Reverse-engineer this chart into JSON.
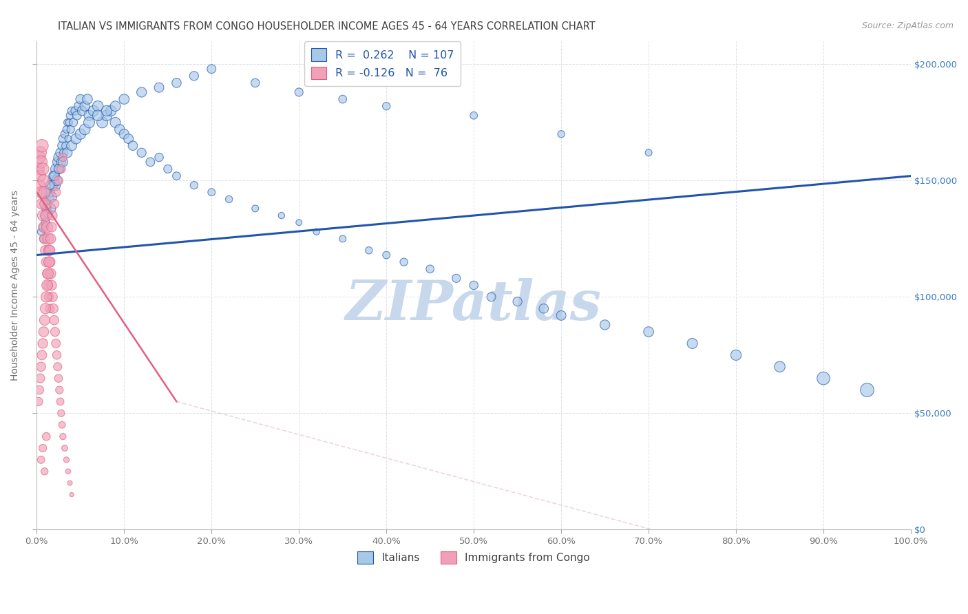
{
  "title": "ITALIAN VS IMMIGRANTS FROM CONGO HOUSEHOLDER INCOME AGES 45 - 64 YEARS CORRELATION CHART",
  "source": "Source: ZipAtlas.com",
  "ylabel": "Householder Income Ages 45 - 64 years",
  "xlim": [
    0,
    1.0
  ],
  "ylim": [
    0,
    210000
  ],
  "xticks": [
    0.0,
    0.1,
    0.2,
    0.3,
    0.4,
    0.5,
    0.6,
    0.7,
    0.8,
    0.9,
    1.0
  ],
  "xticklabels": [
    "0.0%",
    "10.0%",
    "20.0%",
    "30.0%",
    "40.0%",
    "50.0%",
    "60.0%",
    "70.0%",
    "80.0%",
    "90.0%",
    "100.0%"
  ],
  "ytick_values": [
    0,
    50000,
    100000,
    150000,
    200000
  ],
  "ytick_labels": [
    "$0",
    "$50,000",
    "$100,000",
    "$150,000",
    "$200,000"
  ],
  "blue_color": "#a8c8e8",
  "blue_line_color": "#2255aa",
  "pink_color": "#f0a0b8",
  "pink_line_color": "#e06080",
  "pink_dashed_color": "#d8b0c0",
  "title_color": "#404040",
  "axis_label_color": "#707070",
  "watermark_color": "#c8d8ec",
  "background_color": "#ffffff",
  "grid_color": "#d8dfe8",
  "italians_x": [
    0.005,
    0.007,
    0.008,
    0.009,
    0.01,
    0.011,
    0.012,
    0.013,
    0.014,
    0.015,
    0.016,
    0.017,
    0.018,
    0.019,
    0.02,
    0.021,
    0.022,
    0.023,
    0.024,
    0.025,
    0.026,
    0.027,
    0.028,
    0.029,
    0.03,
    0.031,
    0.032,
    0.033,
    0.034,
    0.035,
    0.036,
    0.037,
    0.038,
    0.039,
    0.04,
    0.042,
    0.044,
    0.046,
    0.048,
    0.05,
    0.052,
    0.055,
    0.058,
    0.06,
    0.065,
    0.07,
    0.075,
    0.08,
    0.085,
    0.09,
    0.095,
    0.1,
    0.105,
    0.11,
    0.12,
    0.13,
    0.14,
    0.15,
    0.16,
    0.18,
    0.2,
    0.22,
    0.25,
    0.28,
    0.3,
    0.32,
    0.35,
    0.38,
    0.4,
    0.42,
    0.45,
    0.48,
    0.5,
    0.52,
    0.55,
    0.58,
    0.6,
    0.65,
    0.7,
    0.75,
    0.8,
    0.85,
    0.9,
    0.95,
    0.01,
    0.015,
    0.02,
    0.025,
    0.03,
    0.035,
    0.04,
    0.045,
    0.05,
    0.055,
    0.06,
    0.07,
    0.08,
    0.09,
    0.1,
    0.12,
    0.14,
    0.16,
    0.18,
    0.2,
    0.25,
    0.3,
    0.35,
    0.4,
    0.5,
    0.6,
    0.7
  ],
  "italians_y": [
    128000,
    130000,
    125000,
    135000,
    132000,
    138000,
    140000,
    136000,
    142000,
    145000,
    138000,
    143000,
    148000,
    150000,
    152000,
    148000,
    155000,
    150000,
    158000,
    160000,
    155000,
    162000,
    158000,
    165000,
    168000,
    162000,
    170000,
    165000,
    172000,
    175000,
    168000,
    175000,
    178000,
    172000,
    180000,
    175000,
    180000,
    178000,
    182000,
    185000,
    180000,
    182000,
    185000,
    178000,
    180000,
    182000,
    175000,
    178000,
    180000,
    175000,
    172000,
    170000,
    168000,
    165000,
    162000,
    158000,
    160000,
    155000,
    152000,
    148000,
    145000,
    142000,
    138000,
    135000,
    132000,
    128000,
    125000,
    120000,
    118000,
    115000,
    112000,
    108000,
    105000,
    100000,
    98000,
    95000,
    92000,
    88000,
    85000,
    80000,
    75000,
    70000,
    65000,
    60000,
    145000,
    148000,
    152000,
    155000,
    158000,
    162000,
    165000,
    168000,
    170000,
    172000,
    175000,
    178000,
    180000,
    182000,
    185000,
    188000,
    190000,
    192000,
    195000,
    198000,
    192000,
    188000,
    185000,
    182000,
    178000,
    170000,
    162000
  ],
  "italians_size": [
    60,
    65,
    70,
    75,
    80,
    85,
    90,
    95,
    100,
    105,
    110,
    115,
    120,
    125,
    130,
    125,
    120,
    115,
    110,
    105,
    100,
    95,
    90,
    85,
    80,
    75,
    70,
    65,
    60,
    55,
    50,
    55,
    60,
    65,
    70,
    75,
    80,
    85,
    90,
    95,
    100,
    105,
    110,
    115,
    120,
    125,
    130,
    125,
    120,
    115,
    110,
    105,
    100,
    95,
    90,
    85,
    80,
    75,
    70,
    65,
    60,
    55,
    50,
    45,
    40,
    45,
    50,
    55,
    60,
    65,
    70,
    75,
    80,
    85,
    90,
    95,
    100,
    105,
    110,
    115,
    120,
    125,
    180,
    200,
    80,
    85,
    90,
    95,
    100,
    105,
    110,
    115,
    120,
    125,
    130,
    125,
    120,
    115,
    110,
    105,
    100,
    95,
    90,
    85,
    80,
    75,
    70,
    65,
    60,
    55,
    50
  ],
  "congo_x": [
    0.002,
    0.003,
    0.003,
    0.004,
    0.004,
    0.005,
    0.005,
    0.006,
    0.006,
    0.007,
    0.007,
    0.008,
    0.008,
    0.009,
    0.009,
    0.01,
    0.01,
    0.011,
    0.011,
    0.012,
    0.012,
    0.013,
    0.013,
    0.014,
    0.014,
    0.015,
    0.015,
    0.016,
    0.017,
    0.018,
    0.019,
    0.02,
    0.021,
    0.022,
    0.023,
    0.024,
    0.025,
    0.026,
    0.027,
    0.028,
    0.029,
    0.03,
    0.032,
    0.034,
    0.036,
    0.038,
    0.04,
    0.002,
    0.003,
    0.004,
    0.005,
    0.006,
    0.007,
    0.008,
    0.009,
    0.01,
    0.011,
    0.012,
    0.013,
    0.014,
    0.015,
    0.016,
    0.017,
    0.018,
    0.02,
    0.022,
    0.025,
    0.028,
    0.03,
    0.005,
    0.007,
    0.009,
    0.011
  ],
  "congo_y": [
    155000,
    160000,
    148000,
    162000,
    152000,
    158000,
    145000,
    165000,
    140000,
    155000,
    135000,
    150000,
    130000,
    145000,
    125000,
    140000,
    120000,
    135000,
    115000,
    130000,
    110000,
    125000,
    105000,
    120000,
    100000,
    115000,
    95000,
    110000,
    105000,
    100000,
    95000,
    90000,
    85000,
    80000,
    75000,
    70000,
    65000,
    60000,
    55000,
    50000,
    45000,
    40000,
    35000,
    30000,
    25000,
    20000,
    15000,
    55000,
    60000,
    65000,
    70000,
    75000,
    80000,
    85000,
    90000,
    95000,
    100000,
    105000,
    110000,
    115000,
    120000,
    125000,
    130000,
    135000,
    140000,
    145000,
    150000,
    155000,
    160000,
    30000,
    35000,
    25000,
    40000
  ],
  "congo_size": [
    150,
    160,
    140,
    170,
    145,
    165,
    135,
    175,
    130,
    160,
    125,
    155,
    120,
    150,
    115,
    145,
    110,
    140,
    105,
    135,
    100,
    130,
    95,
    125,
    90,
    120,
    85,
    115,
    110,
    105,
    100,
    95,
    90,
    85,
    80,
    75,
    70,
    65,
    60,
    55,
    50,
    45,
    40,
    35,
    30,
    25,
    20,
    80,
    85,
    90,
    95,
    100,
    105,
    110,
    115,
    120,
    125,
    130,
    125,
    120,
    115,
    110,
    105,
    100,
    95,
    90,
    85,
    80,
    75,
    60,
    65,
    55,
    70
  ],
  "blue_trend": [
    0.0,
    1.0,
    118000,
    152000
  ],
  "pink_trend_solid": [
    0.0,
    0.16,
    145000,
    55000
  ],
  "pink_trend_dashed": [
    0.16,
    1.0,
    55000,
    -30000
  ]
}
